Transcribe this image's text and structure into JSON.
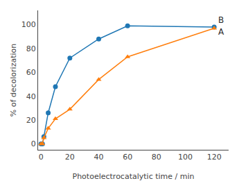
{
  "chart_data": {
    "type": "line",
    "xlabel": "Photoelectrocatalytic time / min",
    "ylabel": "% of decolorization",
    "x": [
      0,
      1,
      2,
      5,
      10,
      20,
      40,
      60,
      120
    ],
    "series": [
      {
        "name": "B",
        "marker": "circle",
        "values": [
          0,
          0,
          6,
          26,
          48,
          72,
          88,
          99,
          98
        ]
      },
      {
        "name": "A",
        "marker": "triangle-up",
        "values": [
          0,
          0,
          5,
          13,
          21,
          29,
          54,
          73,
          97
        ]
      }
    ],
    "annotations": [
      {
        "text": "B",
        "x": 122,
        "y": 104
      },
      {
        "text": "A",
        "x": 122,
        "y": 94
      }
    ],
    "xlim": [
      -2,
      130
    ],
    "ylim": [
      -5,
      112
    ],
    "xticks": [
      0,
      20,
      40,
      60,
      80,
      100,
      120
    ],
    "yticks": [
      0,
      20,
      40,
      60,
      80,
      100
    ],
    "grid": false,
    "legend": false
  }
}
